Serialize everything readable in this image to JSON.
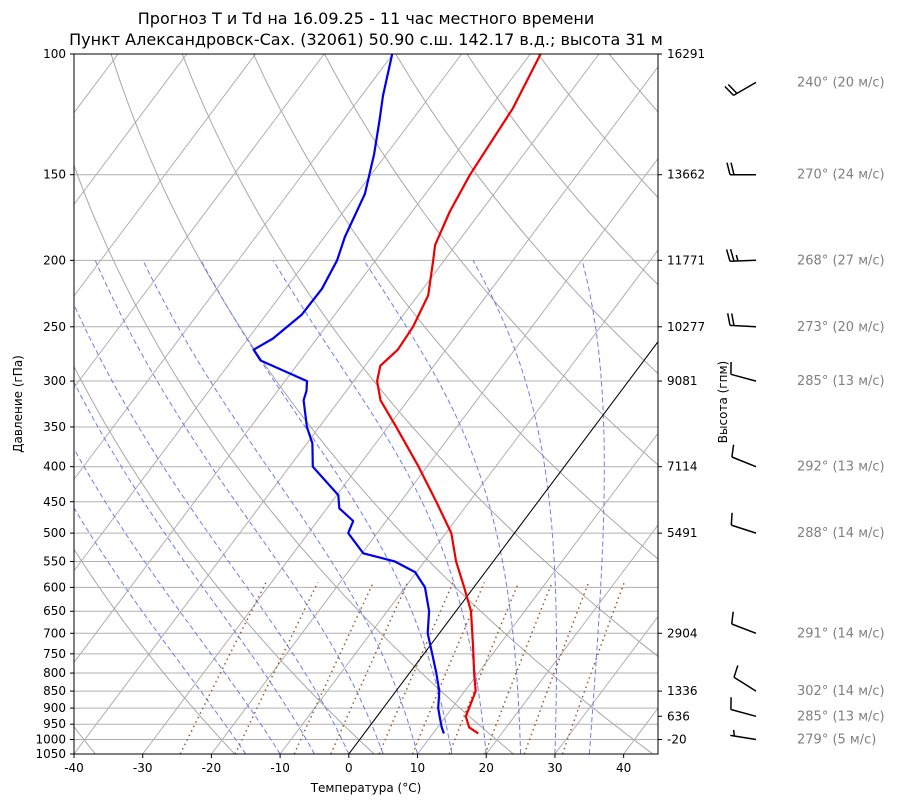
{
  "chart_data": {
    "type": "line",
    "title_line1": "Прогноз T и Td на 16.09.25 - 11 час местного времени",
    "title_line2": "Пункт Александровск-Сах. (32061) 50.90 с.ш. 142.17 в.д.; высота 31 м",
    "xlabel": "Температура (°C)",
    "ylabel": "Давление (гПа)",
    "ylabel_right": "Высота (гпм)",
    "xlim": [
      -40,
      45
    ],
    "ylim": [
      1050,
      100
    ],
    "y_log_scale": true,
    "skew": "temperature lines slanted to the right",
    "grid": true,
    "x_ticks": [
      "-40",
      "-30",
      "-20",
      "-10",
      "0",
      "10",
      "20",
      "30",
      "40"
    ],
    "y_ticks": [
      "100",
      "150",
      "200",
      "250",
      "300",
      "350",
      "400",
      "450",
      "500",
      "550",
      "600",
      "650",
      "700",
      "750",
      "800",
      "850",
      "900",
      "950",
      "1000",
      "1050"
    ],
    "height_ticks": [
      {
        "p": 100,
        "label": "16291"
      },
      {
        "p": 150,
        "label": "13662"
      },
      {
        "p": 200,
        "label": "11771"
      },
      {
        "p": 250,
        "label": "10277"
      },
      {
        "p": 300,
        "label": "9081"
      },
      {
        "p": 400,
        "label": "7114"
      },
      {
        "p": 500,
        "label": "5491"
      },
      {
        "p": 700,
        "label": "2904"
      },
      {
        "p": 850,
        "label": "1336"
      },
      {
        "p": 925,
        "label": "636"
      },
      {
        "p": 1000,
        "label": "-20"
      }
    ],
    "series": [
      {
        "color": "#ee0000",
        "points": [
          [
            980,
            16.6
          ],
          [
            960,
            14.6
          ],
          [
            925,
            12.9
          ],
          [
            900,
            12.5
          ],
          [
            850,
            11.6
          ],
          [
            800,
            9.4
          ],
          [
            750,
            7.2
          ],
          [
            700,
            4.8
          ],
          [
            650,
            2.2
          ],
          [
            600,
            -1.4
          ],
          [
            550,
            -5.4
          ],
          [
            500,
            -9.2
          ],
          [
            450,
            -14.8
          ],
          [
            400,
            -21.2
          ],
          [
            350,
            -28.8
          ],
          [
            320,
            -34.0
          ],
          [
            300,
            -36.6
          ],
          [
            285,
            -37.8
          ],
          [
            270,
            -37.0
          ],
          [
            250,
            -37.3
          ],
          [
            225,
            -38.5
          ],
          [
            200,
            -41.6
          ],
          [
            190,
            -43.0
          ],
          [
            170,
            -44.5
          ],
          [
            150,
            -45.6
          ],
          [
            120,
            -46.6
          ],
          [
            100,
            -48.5
          ]
        ]
      },
      {
        "color": "#0000ee",
        "points": [
          [
            980,
            11.6
          ],
          [
            960,
            10.6
          ],
          [
            925,
            9.1
          ],
          [
            900,
            8.0
          ],
          [
            850,
            6.3
          ],
          [
            800,
            3.9
          ],
          [
            750,
            1.2
          ],
          [
            700,
            -1.7
          ],
          [
            650,
            -3.9
          ],
          [
            600,
            -7.1
          ],
          [
            570,
            -10.2
          ],
          [
            550,
            -14.3
          ],
          [
            535,
            -19.8
          ],
          [
            500,
            -24.2
          ],
          [
            480,
            -24.8
          ],
          [
            460,
            -28.2
          ],
          [
            440,
            -29.8
          ],
          [
            400,
            -36.6
          ],
          [
            370,
            -39.2
          ],
          [
            350,
            -41.8
          ],
          [
            320,
            -45.2
          ],
          [
            310,
            -45.8
          ],
          [
            300,
            -46.8
          ],
          [
            280,
            -55.8
          ],
          [
            270,
            -58.0
          ],
          [
            260,
            -56.4
          ],
          [
            240,
            -54.8
          ],
          [
            220,
            -54.7
          ],
          [
            200,
            -55.6
          ],
          [
            185,
            -57.0
          ],
          [
            160,
            -58.8
          ],
          [
            140,
            -61.8
          ],
          [
            125,
            -64.7
          ],
          [
            115,
            -66.9
          ],
          [
            100,
            -70.1
          ]
        ]
      }
    ],
    "winds": [
      {
        "p": 110,
        "label": "240° (20 м/с)"
      },
      {
        "p": 150,
        "label": "270° (24 м/с)"
      },
      {
        "p": 200,
        "label": "268° (27 м/с)"
      },
      {
        "p": 250,
        "label": "273° (20 м/с)"
      },
      {
        "p": 300,
        "label": "285° (13 м/с)"
      },
      {
        "p": 400,
        "label": "292° (13 м/с)"
      },
      {
        "p": 500,
        "label": "288° (14 м/с)"
      },
      {
        "p": 700,
        "label": "291° (14 м/с)"
      },
      {
        "p": 850,
        "label": "302° (14 м/с)"
      },
      {
        "p": 925,
        "label": "285° (13 м/с)"
      },
      {
        "p": 1000,
        "label": "279° (5 м/с)"
      }
    ]
  }
}
